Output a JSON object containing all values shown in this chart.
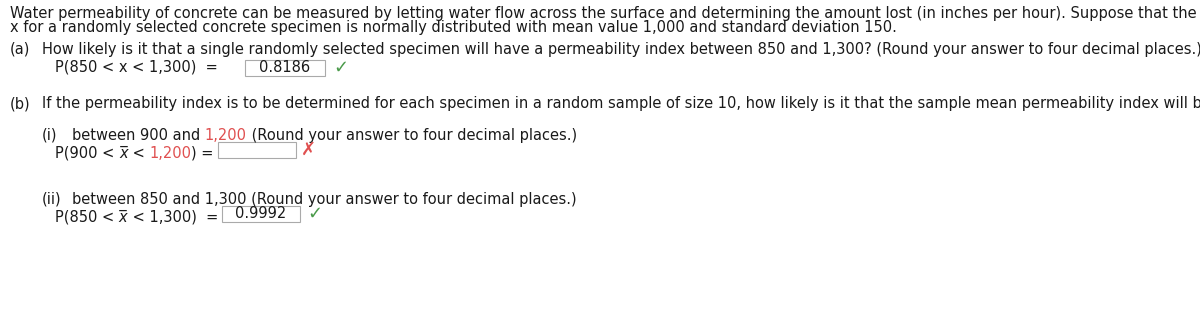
{
  "bg_color": "#ffffff",
  "text_color": "#1a1a1a",
  "red_color": "#e05050",
  "green_color": "#4a9a4a",
  "box_edge_color": "#aaaaaa",
  "intro_line1": "Water permeability of concrete can be measured by letting water flow across the surface and determining the amount lost (in inches per hour). Suppose that the permeability index",
  "intro_line2": "x for a randomly selected concrete specimen is normally distributed with mean value 1,000 and standard deviation 150.",
  "part_a_label": "(a)",
  "part_a_q": "How likely is it that a single randomly selected specimen will have a permeability index between 850 and 1,300? (Round your answer to four decimal places.)",
  "part_a_eq": "P(850 < x < 1,300)  =",
  "part_a_answer": "0.8186",
  "part_b_label": "(b)",
  "part_b_q": "If the permeability index is to be determined for each specimen in a random sample of size 10, how likely is it that the sample mean permeability index will be as follows?",
  "part_b_i_label": "(i)",
  "part_b_i_q_pre": "between 900 and ",
  "part_b_i_q_red": "1,200",
  "part_b_i_q_post": " (Round your answer to four decimal places.)",
  "part_b_i_eq_pre": "P(900 < ",
  "part_b_i_eq_xbar": "x",
  "part_b_i_eq_mid_pre": " < ",
  "part_b_i_eq_mid_red": "1,200",
  "part_b_i_eq_suffix": ") =",
  "part_b_ii_label": "(ii)",
  "part_b_ii_q": "between 850 and 1,300 (Round your answer to four decimal places.)",
  "part_b_ii_eq": "P(850 < x̅ < 1,300)  =",
  "part_b_ii_answer": "0.9992",
  "font_size_body": 10.5,
  "font_size_formula": 10.5,
  "indent_a": 0.045,
  "indent_ab": 0.02,
  "indent_i": 0.065,
  "indent_formula": 0.09
}
